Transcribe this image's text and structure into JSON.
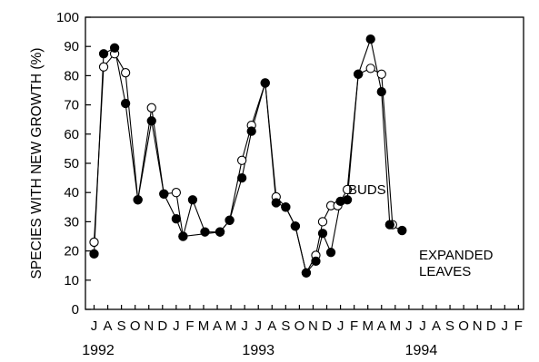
{
  "chart_data": {
    "type": "line",
    "title": "",
    "xlabel": "",
    "ylabel": "SPECIES WITH NEW GROWTH (%)",
    "ylim": [
      0,
      100
    ],
    "yticks": [
      "0",
      "10",
      "20",
      "30",
      "40",
      "50",
      "60",
      "70",
      "80",
      "90",
      "100"
    ],
    "grid": false,
    "month_labels": [
      "J",
      "A",
      "S",
      "O",
      "N",
      "D",
      "J",
      "F",
      "M",
      "A",
      "M",
      "J",
      "J",
      "A",
      "S",
      "O",
      "N",
      "D",
      "J",
      "F",
      "M",
      "A",
      "M",
      "J",
      "J",
      "A",
      "S",
      "O",
      "N",
      "D",
      "J",
      "F"
    ],
    "year_labels": [
      "1992",
      "1993",
      "1994"
    ],
    "annotations": [
      "BUDS",
      "EXPANDED",
      "LEAVES"
    ],
    "series": [
      {
        "name": "BUDS",
        "marker": "open-circle",
        "x": [
          0,
          0.7,
          1.5,
          2.3,
          3.2,
          4.2,
          5.1,
          6.0,
          6.5,
          9.2,
          9.9,
          10.8,
          11.5,
          12.5,
          13.3,
          14.0,
          14.7,
          15.5,
          16.2,
          16.7,
          17.3,
          17.8,
          18.5,
          19.3,
          20.2,
          21.0,
          21.8
        ],
        "values": [
          23,
          83,
          87.5,
          81,
          37.5,
          69,
          39.5,
          40,
          25,
          26.5,
          30.5,
          51,
          63,
          77.5,
          38.5,
          35,
          28.5,
          12.5,
          18.5,
          30,
          35.5,
          35.5,
          41,
          80.5,
          82.5,
          80.5,
          29
        ]
      },
      {
        "name": "EXPANDED LEAVES",
        "marker": "filled-circle",
        "x": [
          0,
          0.7,
          1.5,
          2.3,
          3.2,
          4.2,
          5.1,
          6.0,
          6.5,
          7.2,
          8.1,
          9.2,
          9.9,
          10.8,
          11.5,
          12.5,
          13.3,
          14.0,
          14.7,
          15.5,
          16.2,
          16.7,
          17.3,
          18.0,
          18.5,
          19.3,
          20.2,
          21.0,
          21.6,
          22.5
        ],
        "values": [
          19,
          87.5,
          89.5,
          70.5,
          37.5,
          64.5,
          39.5,
          31,
          25,
          37.5,
          26.5,
          26.5,
          30.5,
          45,
          61,
          77.5,
          36.5,
          35,
          28.5,
          12.5,
          16.5,
          26,
          19.5,
          37,
          37.5,
          80.5,
          92.5,
          74.5,
          29,
          27
        ]
      }
    ]
  }
}
